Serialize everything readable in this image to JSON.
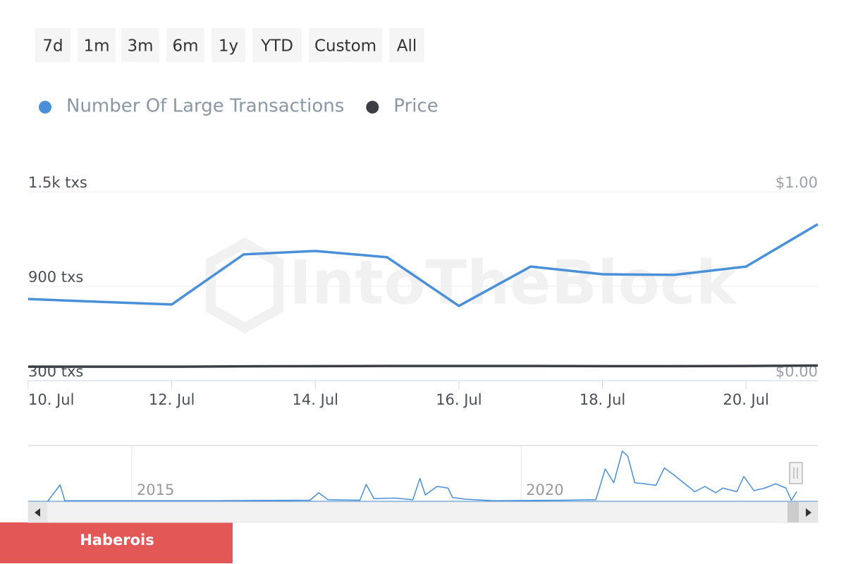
{
  "range_buttons": [
    "7d",
    "1m",
    "3m",
    "6m",
    "1y",
    "YTD",
    "Custom",
    "All"
  ],
  "watermark": "IntoTheBlock",
  "badge": "Haberois",
  "chart_data": [
    {
      "type": "line",
      "x": [
        10,
        11,
        12,
        13,
        14,
        15,
        16,
        17,
        18,
        19,
        20,
        21
      ],
      "xlim": [
        10,
        21
      ],
      "xticks": [
        {
          "value": 10,
          "label": "10. Jul"
        },
        {
          "value": 12,
          "label": "12. Jul"
        },
        {
          "value": 14,
          "label": "14. Jul"
        },
        {
          "value": 16,
          "label": "16. Jul"
        },
        {
          "value": 18,
          "label": "18. Jul"
        },
        {
          "value": 20,
          "label": "20. Jul"
        }
      ],
      "ylim": [
        300,
        1500
      ],
      "yticks": [
        {
          "value": 300,
          "label": "300 txs"
        },
        {
          "value": 900,
          "label": "900 txs"
        },
        {
          "value": 1500,
          "label": "1.5k txs"
        }
      ],
      "y2lim": [
        0,
        1
      ],
      "y2ticks": [
        {
          "value": 0,
          "label": "$0.00"
        },
        {
          "value": 1,
          "label": "$1.00"
        }
      ],
      "grid": true,
      "legend": "top-left",
      "series": [
        {
          "name": "Number Of Large Transactions",
          "color": "#4a90d9",
          "values": [
            819,
            801,
            784,
            1102,
            1124,
            1084,
            775,
            1025,
            976,
            972,
            1025,
            1294
          ]
        },
        {
          "name": "Price",
          "color": "#3b3f45",
          "axis": "y2",
          "values": [
            0.074,
            0.074,
            0.074,
            0.076,
            0.077,
            0.078,
            0.078,
            0.078,
            0.077,
            0.077,
            0.078,
            0.08
          ]
        }
      ]
    },
    {
      "type": "line",
      "x": [
        2013.92,
        2014.08,
        2014.14,
        2016.02,
        2017.29,
        2017.4,
        2017.52,
        2017.93,
        2018.01,
        2018.11,
        2018.38,
        2018.61,
        2018.7,
        2018.77,
        2018.92,
        2019.06,
        2019.12,
        2019.28,
        2019.65,
        2020.55,
        2020.96,
        2021.08,
        2021.19,
        2021.3,
        2021.37,
        2021.46,
        2021.59,
        2021.73,
        2021.84,
        2021.96,
        2022.23,
        2022.36,
        2022.5,
        2022.59,
        2022.77,
        2022.86,
        2022.99,
        2023.13,
        2023.27,
        2023.4,
        2023.47,
        2023.54
      ],
      "xlim": [
        2013.67,
        2023.81
      ],
      "xticks": [
        2015,
        2020
      ],
      "ylim": [
        0,
        100
      ],
      "series": [
        {
          "color": "#4a90d9",
          "values": [
            0,
            31,
            1,
            1,
            2,
            16,
            3,
            2,
            32,
            5,
            6,
            3,
            43,
            12,
            28,
            25,
            7,
            4,
            1,
            2,
            3,
            61,
            35,
            95,
            85,
            35,
            33,
            30,
            63,
            50,
            18,
            28,
            16,
            25,
            18,
            47,
            20,
            25,
            33,
            25,
            2,
            18
          ]
        }
      ]
    }
  ]
}
